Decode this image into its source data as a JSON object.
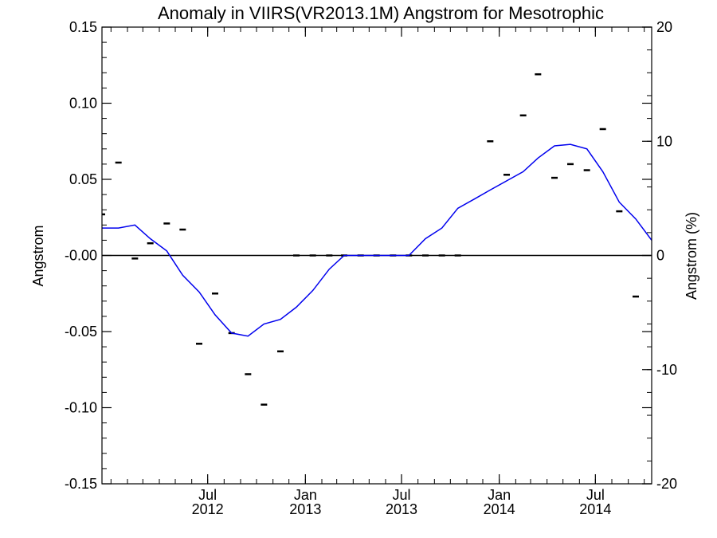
{
  "chart_data": {
    "type": "line",
    "title": "Anomaly in VIIRS(VR2013.1M) Angstrom for Mesotrophic",
    "ylabel": "Angstrom",
    "y2label": "Angstrom (%)",
    "ylim": [
      -0.15,
      0.15
    ],
    "y2lim": [
      -20,
      20
    ],
    "xlim": [
      "2011-12-15",
      "2014-10-15"
    ],
    "grid": false,
    "y_ticks": [
      {
        "value": 0.15,
        "label": "0.15"
      },
      {
        "value": 0.1,
        "label": "0.10"
      },
      {
        "value": 0.05,
        "label": "0.05"
      },
      {
        "value": 0.0,
        "label": "-0.00"
      },
      {
        "value": -0.05,
        "label": "-0.05"
      },
      {
        "value": -0.1,
        "label": "-0.10"
      },
      {
        "value": -0.15,
        "label": "-0.15"
      }
    ],
    "y2_ticks": [
      {
        "value": 20,
        "label": "20"
      },
      {
        "value": 10,
        "label": "10"
      },
      {
        "value": 0,
        "label": "0"
      },
      {
        "value": -10,
        "label": "-10"
      },
      {
        "value": -20,
        "label": "-20"
      }
    ],
    "x_ticks": [
      {
        "date": "2012-07-01",
        "month": "Jul",
        "year": "2012"
      },
      {
        "date": "2013-01-01",
        "month": "Jan",
        "year": "2013"
      },
      {
        "date": "2013-07-01",
        "month": "Jul",
        "year": "2013"
      },
      {
        "date": "2014-01-01",
        "month": "Jan",
        "year": "2014"
      },
      {
        "date": "2014-07-01",
        "month": "Jul",
        "year": "2014"
      }
    ],
    "series": [
      {
        "kind": "markers",
        "color": "#000000",
        "points": [
          {
            "x": "2011-12-15",
            "y": 0.027
          },
          {
            "x": "2012-01-15",
            "y": 0.061
          },
          {
            "x": "2012-02-15",
            "y": -0.002
          },
          {
            "x": "2012-03-15",
            "y": 0.008
          },
          {
            "x": "2012-04-15",
            "y": 0.021
          },
          {
            "x": "2012-05-15",
            "y": 0.017
          },
          {
            "x": "2012-06-15",
            "y": -0.058
          },
          {
            "x": "2012-07-15",
            "y": -0.025
          },
          {
            "x": "2012-08-15",
            "y": -0.051
          },
          {
            "x": "2012-09-15",
            "y": -0.078
          },
          {
            "x": "2012-10-15",
            "y": -0.098
          },
          {
            "x": "2012-11-15",
            "y": -0.063
          },
          {
            "x": "2012-12-15",
            "y": 0.0
          },
          {
            "x": "2013-01-15",
            "y": 0.0
          },
          {
            "x": "2013-02-15",
            "y": 0.0
          },
          {
            "x": "2013-03-15",
            "y": 0.0
          },
          {
            "x": "2013-04-15",
            "y": 0.0
          },
          {
            "x": "2013-05-15",
            "y": 0.0
          },
          {
            "x": "2013-06-15",
            "y": 0.0
          },
          {
            "x": "2013-07-15",
            "y": 0.0
          },
          {
            "x": "2013-08-15",
            "y": 0.0
          },
          {
            "x": "2013-09-15",
            "y": 0.0
          },
          {
            "x": "2013-10-15",
            "y": 0.0
          },
          {
            "x": "2013-12-15",
            "y": 0.075
          },
          {
            "x": "2014-01-15",
            "y": 0.053
          },
          {
            "x": "2014-02-15",
            "y": 0.092
          },
          {
            "x": "2014-03-15",
            "y": 0.119
          },
          {
            "x": "2014-04-15",
            "y": 0.051
          },
          {
            "x": "2014-05-15",
            "y": 0.06
          },
          {
            "x": "2014-06-15",
            "y": 0.056
          },
          {
            "x": "2014-07-15",
            "y": 0.083
          },
          {
            "x": "2014-08-15",
            "y": 0.029
          },
          {
            "x": "2014-09-15",
            "y": -0.027
          }
        ]
      },
      {
        "kind": "line",
        "color": "#0000ee",
        "points": [
          {
            "x": "2011-12-15",
            "y": 0.018
          },
          {
            "x": "2012-01-15",
            "y": 0.018
          },
          {
            "x": "2012-02-15",
            "y": 0.02
          },
          {
            "x": "2012-03-15",
            "y": 0.011
          },
          {
            "x": "2012-04-15",
            "y": 0.003
          },
          {
            "x": "2012-05-15",
            "y": -0.013
          },
          {
            "x": "2012-06-15",
            "y": -0.024
          },
          {
            "x": "2012-07-15",
            "y": -0.039
          },
          {
            "x": "2012-08-15",
            "y": -0.051
          },
          {
            "x": "2012-09-15",
            "y": -0.053
          },
          {
            "x": "2012-10-15",
            "y": -0.045
          },
          {
            "x": "2012-11-15",
            "y": -0.042
          },
          {
            "x": "2012-12-15",
            "y": -0.034
          },
          {
            "x": "2013-01-15",
            "y": -0.023
          },
          {
            "x": "2013-02-15",
            "y": -0.009
          },
          {
            "x": "2013-03-15",
            "y": 0.0
          },
          {
            "x": "2013-04-15",
            "y": 0.0
          },
          {
            "x": "2013-05-15",
            "y": 0.0
          },
          {
            "x": "2013-06-15",
            "y": 0.0
          },
          {
            "x": "2013-07-15",
            "y": 0.0
          },
          {
            "x": "2013-08-15",
            "y": 0.011
          },
          {
            "x": "2013-09-15",
            "y": 0.018
          },
          {
            "x": "2013-10-15",
            "y": 0.031
          },
          {
            "x": "2013-11-15",
            "y": 0.037
          },
          {
            "x": "2013-12-15",
            "y": 0.043
          },
          {
            "x": "2014-01-15",
            "y": 0.049
          },
          {
            "x": "2014-02-15",
            "y": 0.055
          },
          {
            "x": "2014-03-15",
            "y": 0.064
          },
          {
            "x": "2014-04-15",
            "y": 0.072
          },
          {
            "x": "2014-05-15",
            "y": 0.073
          },
          {
            "x": "2014-06-15",
            "y": 0.07
          },
          {
            "x": "2014-07-15",
            "y": 0.055
          },
          {
            "x": "2014-08-15",
            "y": 0.035
          },
          {
            "x": "2014-09-15",
            "y": 0.024
          },
          {
            "x": "2014-10-15",
            "y": 0.01
          }
        ]
      }
    ],
    "reference_line": {
      "y": 0.0,
      "color": "#000000"
    }
  }
}
